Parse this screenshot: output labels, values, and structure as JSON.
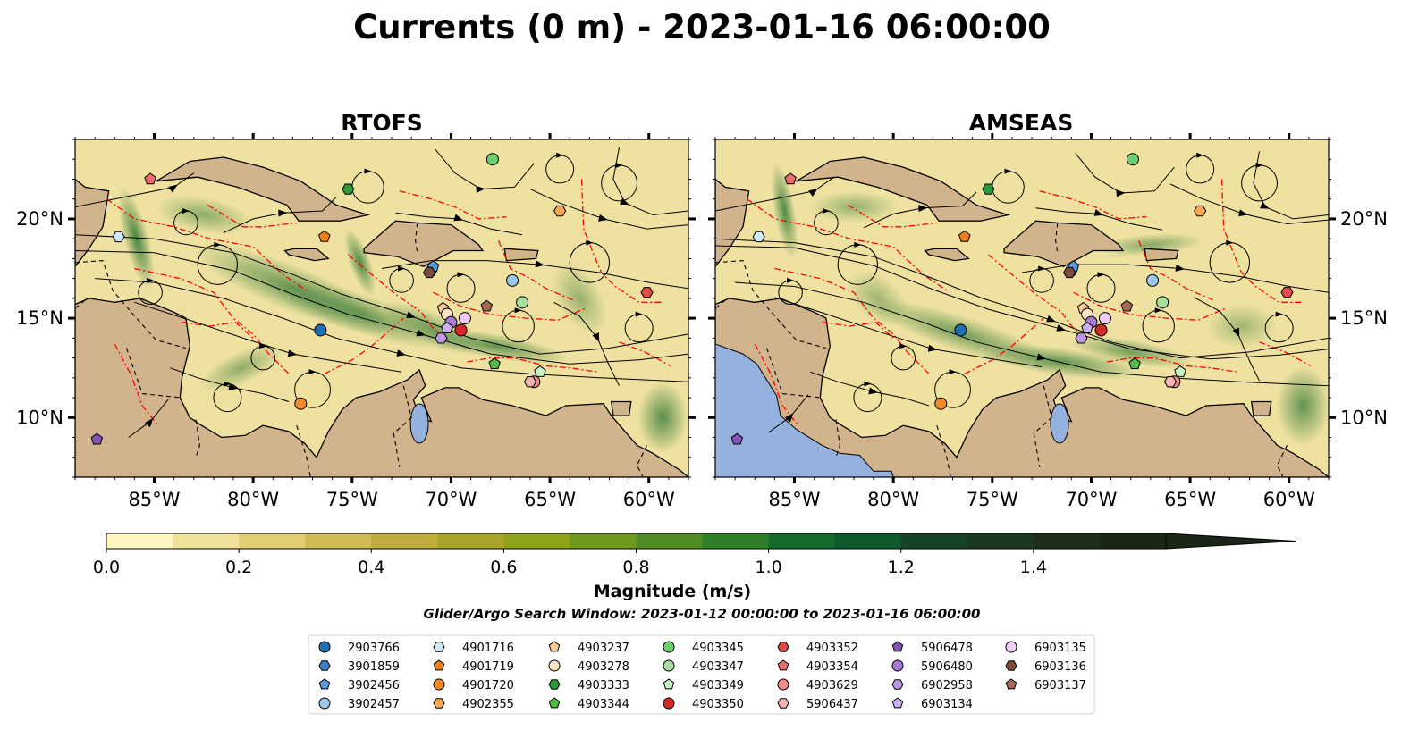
{
  "figure": {
    "title": "Currents (0 m) - 2023-01-16 06:00:00",
    "search_window": "Glider/Argo Search Window: 2023-01-12 00:00:00 to 2023-01-16 06:00:00"
  },
  "colors": {
    "land": "#d2b48c",
    "water_body": "#95b2de",
    "eez": "#ff0000",
    "float_edge": "#000000"
  },
  "chart_data": {
    "type": "heatmap",
    "panels": [
      {
        "title": "RTOFS",
        "right_labels": false
      },
      {
        "title": "AMSEAS",
        "right_labels": true
      }
    ],
    "xlim": [
      -89,
      -58
    ],
    "ylim": [
      7,
      24
    ],
    "x_ticks": [
      -85,
      -80,
      -75,
      -70,
      -65,
      -60
    ],
    "x_tick_labels": [
      "85°W",
      "80°W",
      "75°W",
      "70°W",
      "65°W",
      "60°W"
    ],
    "y_ticks": [
      10,
      15,
      20
    ],
    "y_tick_labels": [
      "10°N",
      "15°N",
      "20°N"
    ],
    "colorbar": {
      "label": "Magnitude (m/s)",
      "min": 0.0,
      "max": 1.6,
      "extend": "max",
      "ticks": [
        0.0,
        0.2,
        0.4,
        0.6,
        0.8,
        1.0,
        1.2,
        1.4
      ],
      "tick_labels": [
        "0.0",
        "0.2",
        "0.4",
        "0.6",
        "0.8",
        "1.0",
        "1.2",
        "1.4"
      ],
      "colors": [
        "#fef6c0",
        "#f1e29a",
        "#e2cd72",
        "#d1bb55",
        "#c1ad3b",
        "#a9a42a",
        "#8ea21a",
        "#6f9a1c",
        "#4f8d22",
        "#2f7f28",
        "#146b2e",
        "#0d5a2c",
        "#154428",
        "#1b3822",
        "#1e2e1b",
        "#1c2616"
      ]
    },
    "floats": [
      {
        "id": "2903766",
        "marker": "circle",
        "color": "#1f6fb4",
        "lon": -76.6,
        "lat": 14.4
      },
      {
        "id": "3901859",
        "marker": "hexagon",
        "color": "#3b7dc4",
        "lon": -71.0,
        "lat": 17.4
      },
      {
        "id": "3902456",
        "marker": "pentagon",
        "color": "#5a9be0",
        "lon": -70.9,
        "lat": 17.6
      },
      {
        "id": "3902457",
        "marker": "circle",
        "color": "#9cc7ee",
        "lon": -66.9,
        "lat": 16.9
      },
      {
        "id": "4901716",
        "marker": "hexagon",
        "color": "#cfe8fb",
        "lon": -86.8,
        "lat": 19.1
      },
      {
        "id": "4901719",
        "marker": "pentagon",
        "color": "#f07e19",
        "lon": -76.4,
        "lat": 19.1
      },
      {
        "id": "4901720",
        "marker": "circle",
        "color": "#f08a2c",
        "lon": -77.6,
        "lat": 10.7
      },
      {
        "id": "4902355",
        "marker": "hexagon",
        "color": "#f9a650",
        "lon": -64.5,
        "lat": 20.4
      },
      {
        "id": "4903237",
        "marker": "pentagon",
        "color": "#fbc98f",
        "lon": -70.4,
        "lat": 15.5
      },
      {
        "id": "4903278",
        "marker": "circle",
        "color": "#fde3c5",
        "lon": -70.2,
        "lat": 15.2
      },
      {
        "id": "4903333",
        "marker": "hexagon",
        "color": "#2a9a3a",
        "lon": -75.2,
        "lat": 21.5
      },
      {
        "id": "4903344",
        "marker": "pentagon",
        "color": "#56bb45",
        "lon": -67.8,
        "lat": 12.7
      },
      {
        "id": "4903345",
        "marker": "circle",
        "color": "#6bcf6e",
        "lon": -67.9,
        "lat": 23.0
      },
      {
        "id": "4903347",
        "marker": "circle",
        "color": "#a6df9e",
        "lon": -66.4,
        "lat": 15.8
      },
      {
        "id": "4903349",
        "marker": "pentagon",
        "color": "#c9f2c3",
        "lon": -65.5,
        "lat": 12.3
      },
      {
        "id": "4903350",
        "marker": "circle",
        "color": "#d62a2a",
        "lon": -69.5,
        "lat": 14.4
      },
      {
        "id": "4903352",
        "marker": "hexagon",
        "color": "#e04a4a",
        "lon": -60.1,
        "lat": 16.3
      },
      {
        "id": "4903354",
        "marker": "pentagon",
        "color": "#eb6f70",
        "lon": -85.2,
        "lat": 22.0
      },
      {
        "id": "4903629",
        "marker": "circle",
        "color": "#f08c8c",
        "lon": -65.8,
        "lat": 11.8
      },
      {
        "id": "5906437",
        "marker": "hexagon",
        "color": "#f6b5b5",
        "lon": -66.0,
        "lat": 11.8
      },
      {
        "id": "5906478",
        "marker": "pentagon",
        "color": "#8352b8",
        "lon": -87.9,
        "lat": 8.9
      },
      {
        "id": "5906480",
        "marker": "circle",
        "color": "#a878d6",
        "lon": -70.0,
        "lat": 14.8
      },
      {
        "id": "6902958",
        "marker": "hexagon",
        "color": "#bd97e6",
        "lon": -70.5,
        "lat": 14.0
      },
      {
        "id": "6903134",
        "marker": "pentagon",
        "color": "#cbb0f0",
        "lon": -70.2,
        "lat": 14.5
      },
      {
        "id": "6903135",
        "marker": "circle",
        "color": "#f0ccf6",
        "lon": -69.3,
        "lat": 15.0
      },
      {
        "id": "6903136",
        "marker": "hexagon",
        "color": "#7a4a3c",
        "lon": -71.1,
        "lat": 17.3
      },
      {
        "id": "6903137",
        "marker": "pentagon",
        "color": "#a46955",
        "lon": -68.2,
        "lat": 15.6
      }
    ]
  }
}
